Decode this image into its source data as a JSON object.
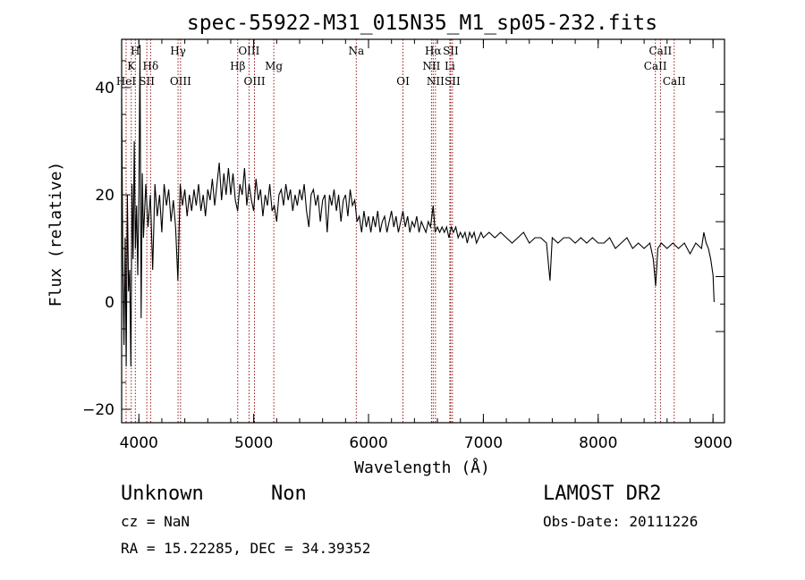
{
  "chart_data": {
    "type": "line",
    "title": "spec-55922-M31_015N35_M1_sp05-232.fits",
    "xlabel": "Wavelength (Å)",
    "ylabel": "Flux (relative)",
    "xlim": [
      3850,
      9100
    ],
    "ylim": [
      -22.5,
      49
    ],
    "xticks": [
      {
        "value": 4000,
        "label": "4000"
      },
      {
        "value": 5000,
        "label": "5000"
      },
      {
        "value": 6000,
        "label": "6000"
      },
      {
        "value": 7000,
        "label": "7000"
      },
      {
        "value": 8000,
        "label": "8000"
      },
      {
        "value": 9000,
        "label": "9000"
      }
    ],
    "yticks": [
      {
        "value": -20,
        "label": "−20"
      },
      {
        "value": 0,
        "label": "0"
      },
      {
        "value": 20,
        "label": "20"
      },
      {
        "value": 40,
        "label": "40"
      }
    ],
    "right_ticks": [
      0,
      5,
      10,
      15,
      20,
      25,
      30,
      35,
      40,
      45
    ],
    "series": [
      {
        "name": "flux",
        "points": [
          [
            3850,
            38
          ],
          [
            3860,
            8
          ],
          [
            3870,
            -8
          ],
          [
            3880,
            12
          ],
          [
            3890,
            -12
          ],
          [
            3900,
            20
          ],
          [
            3910,
            2
          ],
          [
            3920,
            6
          ],
          [
            3930,
            -12
          ],
          [
            3940,
            22
          ],
          [
            3950,
            8
          ],
          [
            3960,
            30
          ],
          [
            3970,
            10
          ],
          [
            3980,
            18
          ],
          [
            3990,
            5
          ],
          [
            4000,
            20
          ],
          [
            4010,
            48
          ],
          [
            4020,
            -3
          ],
          [
            4030,
            24
          ],
          [
            4040,
            12
          ],
          [
            4060,
            22
          ],
          [
            4080,
            14
          ],
          [
            4100,
            20
          ],
          [
            4120,
            6
          ],
          [
            4140,
            22
          ],
          [
            4160,
            16
          ],
          [
            4180,
            20
          ],
          [
            4200,
            13
          ],
          [
            4220,
            22
          ],
          [
            4240,
            18
          ],
          [
            4260,
            21
          ],
          [
            4280,
            15
          ],
          [
            4300,
            19
          ],
          [
            4320,
            14
          ],
          [
            4340,
            4
          ],
          [
            4360,
            22
          ],
          [
            4380,
            18
          ],
          [
            4400,
            21
          ],
          [
            4420,
            16
          ],
          [
            4440,
            20
          ],
          [
            4460,
            17
          ],
          [
            4480,
            21
          ],
          [
            4500,
            18
          ],
          [
            4520,
            22
          ],
          [
            4540,
            17
          ],
          [
            4560,
            20
          ],
          [
            4580,
            16
          ],
          [
            4600,
            21
          ],
          [
            4620,
            19
          ],
          [
            4640,
            23
          ],
          [
            4660,
            18
          ],
          [
            4680,
            22
          ],
          [
            4700,
            26
          ],
          [
            4720,
            19
          ],
          [
            4740,
            24
          ],
          [
            4760,
            20
          ],
          [
            4780,
            25
          ],
          [
            4800,
            20
          ],
          [
            4820,
            24
          ],
          [
            4840,
            19
          ],
          [
            4860,
            17
          ],
          [
            4880,
            22
          ],
          [
            4900,
            20
          ],
          [
            4920,
            25
          ],
          [
            4940,
            18
          ],
          [
            4960,
            22
          ],
          [
            4980,
            19
          ],
          [
            5000,
            17
          ],
          [
            5020,
            23
          ],
          [
            5040,
            19
          ],
          [
            5060,
            21
          ],
          [
            5080,
            16
          ],
          [
            5100,
            20
          ],
          [
            5120,
            18
          ],
          [
            5140,
            22
          ],
          [
            5160,
            17
          ],
          [
            5180,
            18
          ],
          [
            5200,
            15
          ],
          [
            5220,
            20
          ],
          [
            5240,
            21
          ],
          [
            5260,
            18
          ],
          [
            5280,
            22
          ],
          [
            5300,
            19
          ],
          [
            5320,
            21
          ],
          [
            5340,
            17
          ],
          [
            5360,
            20
          ],
          [
            5380,
            18
          ],
          [
            5400,
            21
          ],
          [
            5420,
            19
          ],
          [
            5440,
            22
          ],
          [
            5460,
            17
          ],
          [
            5480,
            14
          ],
          [
            5500,
            20
          ],
          [
            5520,
            21
          ],
          [
            5540,
            18
          ],
          [
            5560,
            20
          ],
          [
            5580,
            15
          ],
          [
            5600,
            19
          ],
          [
            5620,
            20
          ],
          [
            5640,
            13
          ],
          [
            5660,
            20
          ],
          [
            5680,
            18
          ],
          [
            5700,
            21
          ],
          [
            5720,
            17
          ],
          [
            5740,
            20
          ],
          [
            5760,
            15
          ],
          [
            5780,
            19
          ],
          [
            5800,
            20
          ],
          [
            5820,
            16
          ],
          [
            5840,
            21
          ],
          [
            5860,
            18
          ],
          [
            5880,
            19
          ],
          [
            5900,
            15
          ],
          [
            5920,
            16
          ],
          [
            5940,
            13
          ],
          [
            5960,
            17
          ],
          [
            5980,
            14
          ],
          [
            6000,
            16
          ],
          [
            6020,
            13
          ],
          [
            6040,
            16
          ],
          [
            6060,
            14
          ],
          [
            6080,
            17
          ],
          [
            6100,
            13
          ],
          [
            6120,
            15
          ],
          [
            6140,
            16
          ],
          [
            6160,
            13
          ],
          [
            6180,
            15
          ],
          [
            6200,
            17
          ],
          [
            6220,
            14
          ],
          [
            6240,
            16
          ],
          [
            6260,
            13
          ],
          [
            6280,
            15
          ],
          [
            6300,
            17
          ],
          [
            6320,
            14
          ],
          [
            6340,
            16
          ],
          [
            6360,
            13
          ],
          [
            6380,
            15
          ],
          [
            6400,
            14
          ],
          [
            6420,
            16
          ],
          [
            6440,
            13
          ],
          [
            6460,
            15
          ],
          [
            6480,
            14
          ],
          [
            6500,
            13
          ],
          [
            6520,
            15
          ],
          [
            6540,
            14
          ],
          [
            6563,
            18
          ],
          [
            6580,
            13
          ],
          [
            6600,
            14
          ],
          [
            6620,
            13
          ],
          [
            6640,
            14
          ],
          [
            6660,
            13
          ],
          [
            6680,
            14
          ],
          [
            6700,
            12
          ],
          [
            6720,
            14
          ],
          [
            6740,
            13
          ],
          [
            6760,
            14
          ],
          [
            6780,
            12
          ],
          [
            6800,
            13
          ],
          [
            6820,
            12
          ],
          [
            6840,
            13
          ],
          [
            6860,
            11
          ],
          [
            6880,
            13
          ],
          [
            6900,
            12
          ],
          [
            6920,
            13
          ],
          [
            6940,
            11
          ],
          [
            6960,
            12
          ],
          [
            6980,
            13
          ],
          [
            7000,
            12
          ],
          [
            7050,
            13
          ],
          [
            7100,
            12
          ],
          [
            7150,
            13
          ],
          [
            7200,
            12
          ],
          [
            7250,
            11
          ],
          [
            7300,
            12
          ],
          [
            7350,
            13
          ],
          [
            7400,
            11
          ],
          [
            7450,
            12
          ],
          [
            7500,
            12
          ],
          [
            7550,
            11
          ],
          [
            7580,
            4
          ],
          [
            7600,
            12
          ],
          [
            7650,
            11
          ],
          [
            7700,
            12
          ],
          [
            7750,
            12
          ],
          [
            7800,
            11
          ],
          [
            7850,
            12
          ],
          [
            7900,
            11
          ],
          [
            7950,
            12
          ],
          [
            8000,
            11
          ],
          [
            8050,
            11
          ],
          [
            8100,
            12
          ],
          [
            8150,
            10
          ],
          [
            8200,
            11
          ],
          [
            8250,
            12
          ],
          [
            8300,
            10
          ],
          [
            8350,
            11
          ],
          [
            8400,
            10
          ],
          [
            8450,
            11
          ],
          [
            8480,
            8
          ],
          [
            8500,
            3
          ],
          [
            8520,
            10
          ],
          [
            8550,
            11
          ],
          [
            8600,
            10
          ],
          [
            8650,
            11
          ],
          [
            8700,
            10
          ],
          [
            8750,
            11
          ],
          [
            8800,
            9
          ],
          [
            8850,
            11
          ],
          [
            8900,
            10
          ],
          [
            8920,
            13
          ],
          [
            8940,
            11
          ],
          [
            8960,
            10
          ],
          [
            8980,
            8
          ],
          [
            9000,
            5
          ],
          [
            9010,
            0
          ]
        ]
      }
    ],
    "spectral_lines": [
      {
        "wavelength": 3934,
        "label": "K",
        "row": 2
      },
      {
        "wavelength": 3969,
        "label": "H",
        "row": 1
      },
      {
        "wavelength": 3889,
        "label": "HeI",
        "row": 3
      },
      {
        "wavelength": 4069,
        "label": "SII",
        "row": 3
      },
      {
        "wavelength": 4102,
        "label": "Hδ",
        "row": 2
      },
      {
        "wavelength": 4341,
        "label": "Hγ",
        "row": 1
      },
      {
        "wavelength": 4363,
        "label": "OIII",
        "row": 3
      },
      {
        "wavelength": 4861,
        "label": "Hβ",
        "row": 2
      },
      {
        "wavelength": 4959,
        "label": "OIII",
        "row": 1
      },
      {
        "wavelength": 5007,
        "label": "OIII",
        "row": 3
      },
      {
        "wavelength": 5175,
        "label": "Mg",
        "row": 2
      },
      {
        "wavelength": 5893,
        "label": "Na",
        "row": 1
      },
      {
        "wavelength": 6300,
        "label": "OI",
        "row": 3
      },
      {
        "wavelength": 6548,
        "label": "NII",
        "row": 2
      },
      {
        "wavelength": 6563,
        "label": "Hα",
        "row": 1
      },
      {
        "wavelength": 6583,
        "label": "NII",
        "row": 3
      },
      {
        "wavelength": 6708,
        "label": "Li",
        "row": 2
      },
      {
        "wavelength": 6716,
        "label": "SII",
        "row": 1
      },
      {
        "wavelength": 6731,
        "label": "SII",
        "row": 3
      },
      {
        "wavelength": 8498,
        "label": "CaII",
        "row": 2
      },
      {
        "wavelength": 8542,
        "label": "CaII",
        "row": 1
      },
      {
        "wavelength": 8662,
        "label": "CaII",
        "row": 3
      }
    ],
    "line_color": "#8b0000",
    "data_color": "#000000"
  },
  "footer": {
    "class_label": "Unknown",
    "subclass_label": "Non",
    "survey": "LAMOST DR2",
    "cz": "cz = NaN",
    "obs_date": "Obs-Date: 20111226",
    "coords": "RA =  15.22285, DEC =  34.39352"
  }
}
